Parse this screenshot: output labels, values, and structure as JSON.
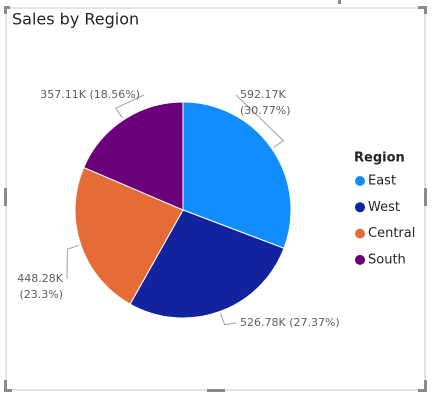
{
  "chart_data": {
    "type": "pie",
    "title": "Sales by Region",
    "legend_title": "Region",
    "legend": "right",
    "categories": [
      "East",
      "West",
      "Central",
      "South"
    ],
    "values": [
      592170,
      526780,
      448280,
      357110
    ],
    "value_labels": [
      "592.17K (30.77%)",
      "526.78K (27.37%)",
      "448.28K (23.3%)",
      "357.11K (18.56%)"
    ],
    "colors": [
      "#118DFF",
      "#12239E",
      "#E66C37",
      "#6B007B"
    ]
  }
}
